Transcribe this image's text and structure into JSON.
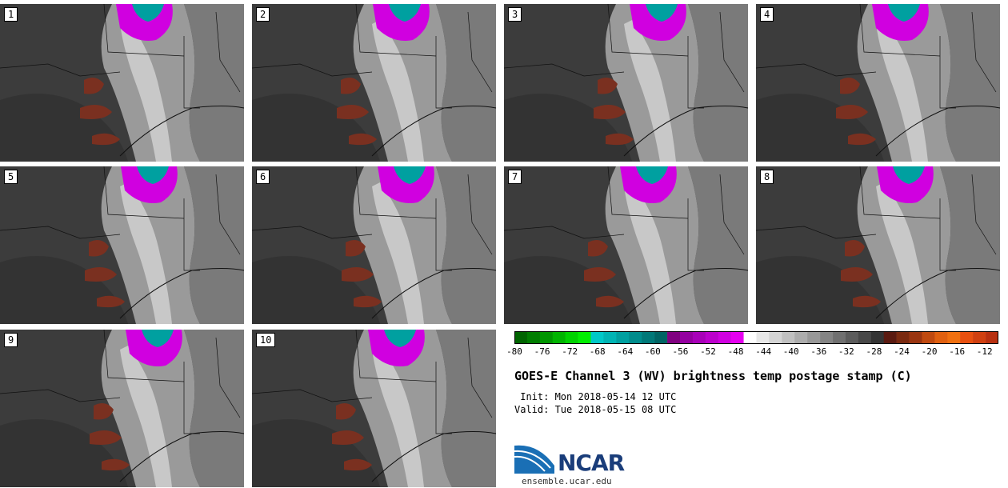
{
  "title": "GOES-E Channel 3 (WV) brightness temp postage stamp (C)",
  "init_text": " Init: Mon 2018-05-14 12 UTC",
  "valid_text": "Valid: Tue 2018-05-15 08 UTC",
  "site": "ensemble.ucar.edu",
  "logo": "NCAR",
  "colorbar": {
    "min": -80,
    "max": -10,
    "tick_labels": [
      "-80",
      "-76",
      "-72",
      "-68",
      "-64",
      "-60",
      "-56",
      "-52",
      "-48",
      "-44",
      "-40",
      "-36",
      "-32",
      "-28",
      "-24",
      "-20",
      "-16",
      "-12"
    ],
    "colors": [
      "#006400",
      "#007d00",
      "#009600",
      "#00b400",
      "#00d200",
      "#00ee00",
      "#00c8c8",
      "#00b4b4",
      "#00a0a0",
      "#008c8c",
      "#007878",
      "#006464",
      "#800080",
      "#9400a0",
      "#a800b8",
      "#bc00cc",
      "#d000e0",
      "#e600f0",
      "#ffffff",
      "#e8e8e8",
      "#d4d4d4",
      "#c0c0c0",
      "#acacac",
      "#989898",
      "#848484",
      "#707070",
      "#5c5c5c",
      "#484848",
      "#343434",
      "#5a1a10",
      "#7a2a10",
      "#9a3510",
      "#c04a10",
      "#e06010",
      "#f07010",
      "#e85010",
      "#d04010",
      "#b83010"
    ]
  },
  "panels": [
    {
      "label": "1"
    },
    {
      "label": "2"
    },
    {
      "label": "3"
    },
    {
      "label": "4"
    },
    {
      "label": "5"
    },
    {
      "label": "6"
    },
    {
      "label": "7"
    },
    {
      "label": "8"
    },
    {
      "label": "9"
    },
    {
      "label": "10"
    }
  ]
}
